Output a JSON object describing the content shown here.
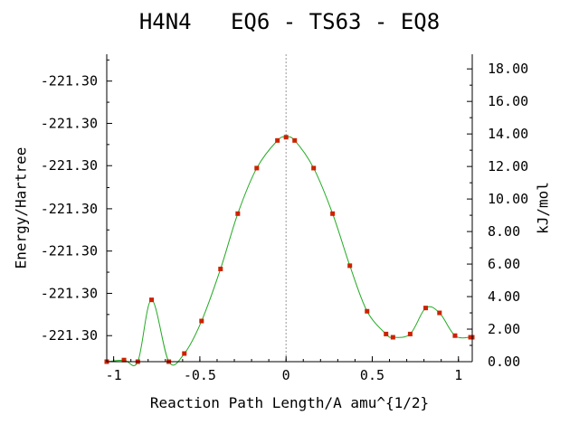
{
  "chart_data": {
    "type": "line",
    "title": "H4N4   EQ6 - TS63 - EQ8",
    "xlabel": "Reaction Path Length/A amu^{1/2}",
    "ylabel_left": "Energy/Hartree",
    "ylabel_right": "kJ/mol",
    "xlim": [
      -1.04,
      1.08
    ],
    "ylim_right": [
      0,
      18.9
    ],
    "x_ticks": [
      {
        "value": -1,
        "label": "-1"
      },
      {
        "value": -0.5,
        "label": "-0.5"
      },
      {
        "value": 0,
        "label": "0"
      },
      {
        "value": 0.5,
        "label": "0.5"
      },
      {
        "value": 1,
        "label": "1"
      }
    ],
    "y_left_ticks": [
      {
        "value": 1.6,
        "label": "-221.30"
      },
      {
        "value": 4.2,
        "label": "-221.30"
      },
      {
        "value": 6.8,
        "label": "-221.30"
      },
      {
        "value": 9.4,
        "label": "-221.30"
      },
      {
        "value": 12.05,
        "label": "-221.30"
      },
      {
        "value": 14.65,
        "label": "-221.30"
      },
      {
        "value": 17.25,
        "label": "-221.30"
      }
    ],
    "y_right_ticks": [
      {
        "value": 0,
        "label": "0.00"
      },
      {
        "value": 2,
        "label": "2.00"
      },
      {
        "value": 4,
        "label": "4.00"
      },
      {
        "value": 6,
        "label": "6.00"
      },
      {
        "value": 8,
        "label": "8.00"
      },
      {
        "value": 10,
        "label": "10.00"
      },
      {
        "value": 12,
        "label": "12.00"
      },
      {
        "value": 14,
        "label": "14.00"
      },
      {
        "value": 16,
        "label": "16.00"
      },
      {
        "value": 18,
        "label": "18.00"
      }
    ],
    "ts_marker_x": 0,
    "curve_color": "#22aa22",
    "point_color": "#cc2200",
    "reference_line_color": "#999999",
    "series": [
      {
        "points": [
          {
            "x": -1.04,
            "y": 0.0
          },
          {
            "x": -0.94,
            "y": 0.1
          },
          {
            "x": -0.86,
            "y": 0.0
          },
          {
            "x": -0.78,
            "y": 3.8
          },
          {
            "x": -0.68,
            "y": 0.0
          },
          {
            "x": -0.59,
            "y": 0.5
          },
          {
            "x": -0.49,
            "y": 2.5
          },
          {
            "x": -0.38,
            "y": 5.7
          },
          {
            "x": -0.28,
            "y": 9.1
          },
          {
            "x": -0.17,
            "y": 11.9
          },
          {
            "x": -0.05,
            "y": 13.6
          },
          {
            "x": 0.0,
            "y": 13.8
          },
          {
            "x": 0.05,
            "y": 13.6
          },
          {
            "x": 0.16,
            "y": 11.9
          },
          {
            "x": 0.27,
            "y": 9.1
          },
          {
            "x": 0.37,
            "y": 5.9
          },
          {
            "x": 0.47,
            "y": 3.1
          },
          {
            "x": 0.58,
            "y": 1.7
          },
          {
            "x": 0.62,
            "y": 1.5
          },
          {
            "x": 0.72,
            "y": 1.7
          },
          {
            "x": 0.81,
            "y": 3.3
          },
          {
            "x": 0.89,
            "y": 3.0
          },
          {
            "x": 0.98,
            "y": 1.6
          },
          {
            "x": 1.07,
            "y": 1.5
          },
          {
            "x": 1.08,
            "y": 1.5
          }
        ]
      }
    ]
  }
}
